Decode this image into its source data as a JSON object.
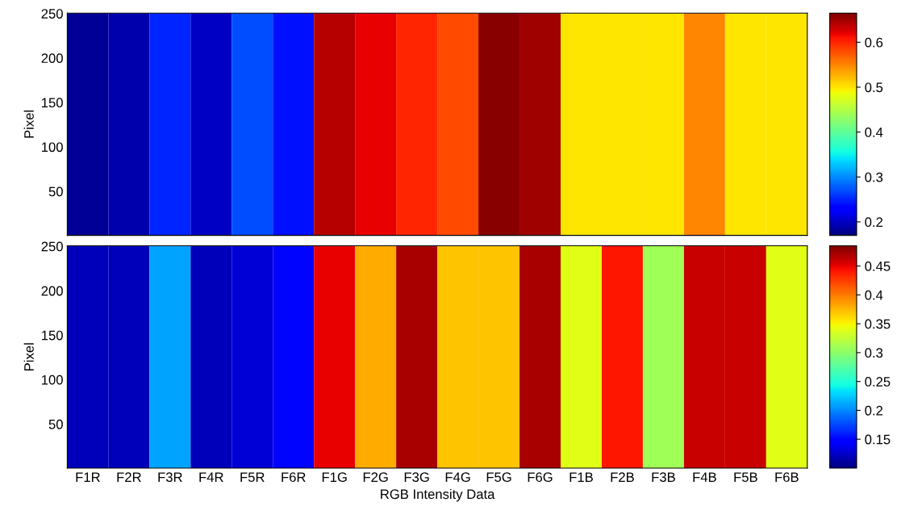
{
  "chart_data": [
    {
      "type": "heatmap",
      "ylabel": "Pixel",
      "categories": [
        null,
        null,
        null,
        null,
        null,
        null,
        null,
        null,
        null,
        null,
        null,
        null,
        null,
        null,
        null,
        null,
        null,
        null
      ],
      "cells": [
        [
          0.18,
          0.19,
          0.25,
          0.2,
          0.27,
          0.24,
          0.64,
          0.62,
          0.6,
          0.58,
          0.66,
          0.65,
          0.5,
          0.5,
          0.5,
          0.55,
          0.5,
          0.5
        ]
      ],
      "ylim": [
        0.5,
        250.5
      ],
      "yticks": [
        50,
        100,
        150,
        200,
        250
      ],
      "clim": [
        0.17,
        0.665
      ],
      "cticks": [
        0.2,
        0.3,
        0.4,
        0.5,
        0.6
      ]
    },
    {
      "type": "heatmap",
      "ylabel": "Pixel",
      "xlabel": "RGB Intensity Data",
      "categories": [
        "F1R",
        "F2R",
        "F3R",
        "F4R",
        "F5R",
        "F6R",
        "F1G",
        "F2G",
        "F3G",
        "F4G",
        "F5G",
        "F6G",
        "F1B",
        "F2B",
        "F3B",
        "F4B",
        "F5B",
        "F6B"
      ],
      "cells": [
        [
          0.12,
          0.12,
          0.21,
          0.12,
          0.13,
          0.15,
          0.45,
          0.38,
          0.47,
          0.37,
          0.37,
          0.47,
          0.34,
          0.44,
          0.31,
          0.46,
          0.46,
          0.34
        ]
      ],
      "ylim": [
        0.5,
        250.5
      ],
      "yticks": [
        50,
        100,
        150,
        200,
        250
      ],
      "clim": [
        0.1,
        0.485
      ],
      "cticks": [
        0.15,
        0.2,
        0.25,
        0.3,
        0.35,
        0.4,
        0.45
      ]
    }
  ]
}
